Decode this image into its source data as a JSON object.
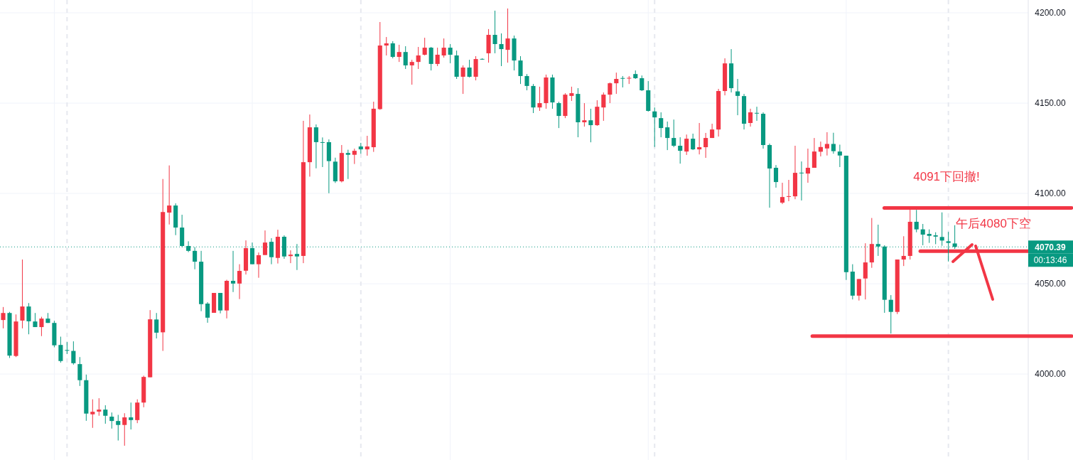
{
  "chart_data": {
    "type": "candlestick",
    "categories": [
      null,
      null,
      null,
      null,
      null,
      null,
      null,
      null,
      null,
      null,
      null,
      null,
      null,
      null,
      null,
      null,
      null,
      null,
      null,
      null,
      null,
      null,
      null,
      null,
      null,
      null,
      null,
      null,
      null,
      null,
      null,
      null,
      null,
      null,
      null,
      null,
      null,
      null,
      null,
      null,
      null,
      null,
      null,
      null,
      null,
      null,
      null,
      null,
      null,
      null,
      null,
      null,
      null,
      null,
      null,
      null,
      null,
      null,
      null,
      null,
      null,
      null,
      null,
      null,
      null,
      null,
      null,
      null,
      null,
      null,
      null,
      null,
      null,
      null,
      null,
      null,
      null,
      null,
      null,
      null,
      null,
      null,
      null,
      null,
      null,
      null,
      null,
      null,
      null,
      null,
      null,
      null,
      null,
      null,
      null,
      null,
      null,
      null,
      null,
      null,
      null,
      null,
      null,
      null,
      null,
      null,
      null,
      null,
      null,
      null,
      null,
      null,
      null,
      null,
      null,
      null,
      null,
      null,
      null,
      null,
      null,
      null,
      null,
      null,
      null,
      null,
      null,
      null,
      null,
      null,
      null,
      null,
      null,
      null,
      null,
      null,
      null,
      null,
      null,
      null,
      null,
      null,
      null,
      null,
      null,
      null,
      null,
      null,
      null,
      null,
      null,
      null,
      null,
      null,
      null,
      null,
      null,
      null,
      null,
      null,
      null
    ],
    "ohlc": [
      [
        4029.9,
        4037.1,
        4025.3,
        4033.8
      ],
      [
        4033.8,
        4034.4,
        4008.9,
        4010.2
      ],
      [
        4010.0,
        4033.0,
        4009.4,
        4029.1
      ],
      [
        4029.6,
        4063.4,
        4025.3,
        4037.4
      ],
      [
        4037.4,
        4039.3,
        4022.0,
        4029.2
      ],
      [
        4029.1,
        4033.8,
        4026.0,
        4026.0
      ],
      [
        4026.0,
        4031.7,
        4021.0,
        4030.7
      ],
      [
        4030.7,
        4033.8,
        4028.3,
        4028.3
      ],
      [
        4028.3,
        4029.5,
        4014.8,
        4015.9
      ],
      [
        4016.1,
        4020.7,
        4006.3,
        4007.2
      ],
      [
        4013.3,
        4017.7,
        4011.1,
        4013.1
      ],
      [
        4012.8,
        4018.1,
        4005.2,
        4006.0
      ],
      [
        4005.5,
        4009.4,
        3993.4,
        3996.6
      ],
      [
        3996.6,
        3999.7,
        3974.1,
        3978.1
      ],
      [
        3977.7,
        3986.0,
        3970.2,
        3979.1
      ],
      [
        3979.2,
        3986.6,
        3976.9,
        3980.3
      ],
      [
        3980.3,
        3982.7,
        3972.5,
        3976.9
      ],
      [
        3976.4,
        3978.7,
        3969.8,
        3974.0
      ],
      [
        3974.0,
        3977.4,
        3963.2,
        3971.8
      ],
      [
        3971.8,
        3978.3,
        3960.3,
        3976.0
      ],
      [
        3976.0,
        3984.2,
        3969.3,
        3974.5
      ],
      [
        3974.5,
        3986.0,
        3972.8,
        3984.2
      ],
      [
        3984.2,
        3999.1,
        3981.6,
        3998.4
      ],
      [
        3998.2,
        4035.4,
        3998.2,
        4030.3
      ],
      [
        4030.2,
        4033.8,
        4019.7,
        4022.9
      ],
      [
        4023.1,
        4108.0,
        4012.8,
        4089.7
      ],
      [
        4089.4,
        4115.5,
        4082.8,
        4093.3
      ],
      [
        4093.3,
        4094.5,
        4076.9,
        4081.1
      ],
      [
        4081.1,
        4088.2,
        4070.3,
        4070.9
      ],
      [
        4070.9,
        4073.5,
        4067.5,
        4068.2
      ],
      [
        4068.2,
        4070.3,
        4058.0,
        4062.2
      ],
      [
        4062.2,
        4068.2,
        4034.8,
        4038.7
      ],
      [
        4039.0,
        4039.8,
        4028.4,
        4031.2
      ],
      [
        4033.9,
        4044.9,
        4033.9,
        4044.9
      ],
      [
        4044.9,
        4044.9,
        4033.6,
        4035.2
      ],
      [
        4035.2,
        4052.2,
        4030.8,
        4051.6
      ],
      [
        4051.6,
        4068.2,
        4045.4,
        4050.1
      ],
      [
        4050.1,
        4060.8,
        4041.5,
        4057.1
      ],
      [
        4057.2,
        4074.0,
        4055.1,
        4069.7
      ],
      [
        4069.7,
        4072.8,
        4060.8,
        4060.8
      ],
      [
        4060.8,
        4067.3,
        4053.3,
        4065.8
      ],
      [
        4065.9,
        4079.5,
        4065.9,
        4072.8
      ],
      [
        4073.2,
        4075.2,
        4060.8,
        4064.7
      ],
      [
        4064.3,
        4079.9,
        4061.2,
        4076.0
      ],
      [
        4076.0,
        4076.8,
        4063.8,
        4065.1
      ],
      [
        4065.3,
        4068.5,
        4061.4,
        4066.1
      ],
      [
        4066.5,
        4072.0,
        4057.6,
        4065.1
      ],
      [
        4065.4,
        4140.2,
        4061.4,
        4117.3
      ],
      [
        4117.3,
        4143.7,
        4109.3,
        4136.6
      ],
      [
        4136.6,
        4138.2,
        4113.9,
        4128.4
      ],
      [
        4128.4,
        4131.0,
        4114.6,
        4128.0
      ],
      [
        4128.4,
        4129.9,
        4100.1,
        4117.9
      ],
      [
        4117.6,
        4119.8,
        4105.8,
        4106.7
      ],
      [
        4106.7,
        4126.8,
        4106.1,
        4122.4
      ],
      [
        4122.4,
        4124.2,
        4108.0,
        4121.4
      ],
      [
        4121.4,
        4124.8,
        4116.3,
        4123.6
      ],
      [
        4126.0,
        4128.0,
        4122.0,
        4124.4
      ],
      [
        4124.4,
        4131.9,
        4120.9,
        4126.0
      ],
      [
        4125.6,
        4150.8,
        4123.0,
        4146.9
      ],
      [
        4146.7,
        4194.9,
        4146.3,
        4181.9
      ],
      [
        4181.9,
        4186.6,
        4176.4,
        4183.1
      ],
      [
        4183.1,
        4184.3,
        4174.8,
        4175.6
      ],
      [
        4175.6,
        4182.3,
        4172.8,
        4178.3
      ],
      [
        4178.3,
        4181.5,
        4168.9,
        4170.9
      ],
      [
        4170.9,
        4174.0,
        4160.2,
        4172.8
      ],
      [
        4172.8,
        4181.1,
        4168.9,
        4176.4
      ],
      [
        4176.8,
        4186.2,
        4176.4,
        4180.7
      ],
      [
        4180.7,
        4181.1,
        4168.1,
        4171.7
      ],
      [
        4171.7,
        4180.7,
        4170.5,
        4176.8
      ],
      [
        4176.4,
        4185.8,
        4175.2,
        4180.7
      ],
      [
        4180.7,
        4182.7,
        4172.1,
        4176.8
      ],
      [
        4176.4,
        4179.1,
        4163.4,
        4164.6
      ],
      [
        4164.6,
        4170.9,
        4155.1,
        4169.7
      ],
      [
        4169.7,
        4174.0,
        4164.2,
        4164.6
      ],
      [
        4164.6,
        4176.0,
        4162.6,
        4174.4
      ],
      [
        4174.5,
        4174.8,
        4174.0,
        4174.2
      ],
      [
        4177.6,
        4191.0,
        4172.4,
        4187.8
      ],
      [
        4187.8,
        4201.2,
        4177.6,
        4182.7
      ],
      [
        4182.7,
        4188.6,
        4170.5,
        4179.9
      ],
      [
        4179.5,
        4202.4,
        4172.4,
        4185.8
      ],
      [
        4185.8,
        4187.4,
        4168.1,
        4173.6
      ],
      [
        4173.6,
        4176.0,
        4160.6,
        4165.0
      ],
      [
        4165.0,
        4166.1,
        4157.1,
        4159.5
      ],
      [
        4159.5,
        4160.6,
        4144.5,
        4147.6
      ],
      [
        4147.6,
        4159.1,
        4145.7,
        4150.0
      ],
      [
        4150.0,
        4165.8,
        4146.9,
        4164.2
      ],
      [
        4164.2,
        4165.8,
        4146.9,
        4150.4
      ],
      [
        4150.0,
        4150.8,
        4136.2,
        4142.9
      ],
      [
        4142.9,
        4155.5,
        4141.7,
        4154.7
      ],
      [
        4154.0,
        4159.1,
        4151.2,
        4155.5
      ],
      [
        4155.1,
        4158.3,
        4131.1,
        4139.4
      ],
      [
        4139.4,
        4150.0,
        4137.0,
        4140.5
      ],
      [
        4140.5,
        4146.9,
        4128.3,
        4137.8
      ],
      [
        4137.8,
        4151.6,
        4137.4,
        4148.0
      ],
      [
        4147.6,
        4155.9,
        4140.2,
        4154.7
      ],
      [
        4154.7,
        4161.4,
        4150.0,
        4161.0
      ],
      [
        4161.0,
        4166.9,
        4155.1,
        4163.4
      ],
      [
        4163.9,
        4165.0,
        4158.7,
        4163.6
      ],
      [
        4163.7,
        4165.0,
        4160.6,
        4164.0
      ],
      [
        4166.1,
        4168.1,
        4163.4,
        4163.8
      ],
      [
        4163.8,
        4165.3,
        4156.7,
        4157.1
      ],
      [
        4157.1,
        4162.2,
        4145.3,
        4145.7
      ],
      [
        4145.4,
        4147.6,
        4125.7,
        4142.1
      ],
      [
        4141.7,
        4144.9,
        4131.1,
        4136.2
      ],
      [
        4136.6,
        4139.8,
        4124.0,
        4130.7
      ],
      [
        4130.7,
        4140.9,
        4125.6,
        4126.4
      ],
      [
        4126.4,
        4131.1,
        4116.5,
        4123.6
      ],
      [
        4123.2,
        4132.6,
        4121.3,
        4130.3
      ],
      [
        4130.3,
        4133.1,
        4124.0,
        4124.4
      ],
      [
        4124.4,
        4139.0,
        4121.6,
        4125.6
      ],
      [
        4125.6,
        4133.5,
        4119.7,
        4130.7
      ],
      [
        4130.7,
        4138.6,
        4130.7,
        4135.4
      ],
      [
        4135.4,
        4157.9,
        4131.5,
        4156.7
      ],
      [
        4156.7,
        4174.8,
        4154.3,
        4172.0
      ],
      [
        4172.0,
        4179.9,
        4155.9,
        4158.3
      ],
      [
        4156.5,
        4163.4,
        4143.3,
        4154.0
      ],
      [
        4153.9,
        4155.1,
        4135.4,
        4138.6
      ],
      [
        4139.0,
        4146.9,
        4137.0,
        4144.9
      ],
      [
        4144.6,
        4148.0,
        4140.2,
        4144.3
      ],
      [
        4144.1,
        4144.9,
        4124.8,
        4126.8
      ],
      [
        4126.8,
        4127.6,
        4092.1,
        4113.8
      ],
      [
        4114.2,
        4115.7,
        4103.2,
        4106.3
      ],
      [
        4094.9,
        4105.9,
        4094.1,
        4098.0
      ],
      [
        4098.2,
        4107.5,
        4095.7,
        4098.5
      ],
      [
        4098.4,
        4126.4,
        4096.8,
        4111.4
      ],
      [
        4111.5,
        4117.7,
        4096.1,
        4111.2
      ],
      [
        4111.0,
        4124.8,
        4105.9,
        4114.2
      ],
      [
        4114.2,
        4130.7,
        4114.2,
        4123.2
      ],
      [
        4123.1,
        4128.7,
        4120.5,
        4125.7
      ],
      [
        4124.9,
        4133.9,
        4121.0,
        4127.4
      ],
      [
        4127.4,
        4133.6,
        4122.0,
        4123.4
      ],
      [
        4123.2,
        4127.0,
        4114.6,
        4121.0
      ],
      [
        4120.9,
        4120.9,
        4052.1,
        4056.4
      ],
      [
        4056.7,
        4060.8,
        4041.3,
        4043.4
      ],
      [
        4043.4,
        4052.6,
        4040.7,
        4052.6
      ],
      [
        4052.9,
        4072.4,
        4041.3,
        4061.8
      ],
      [
        4061.8,
        4086.4,
        4058.8,
        4072.0
      ],
      [
        4072.0,
        4082.7,
        4065.4,
        4070.6
      ],
      [
        4070.6,
        4071.3,
        4033.9,
        4041.1
      ],
      [
        4041.1,
        4043.7,
        4022.4,
        4034.4
      ],
      [
        4034.4,
        4063.4,
        4033.2,
        4063.4
      ],
      [
        4063.4,
        4076.3,
        4059.8,
        4065.4
      ],
      [
        4065.4,
        4091.3,
        4063.4,
        4084.3
      ],
      [
        4084.3,
        4090.9,
        4078.5,
        4080.1
      ],
      [
        4080.1,
        4083.1,
        4071.3,
        4077.2
      ],
      [
        4077.6,
        4080.1,
        4072.6,
        4076.5
      ],
      [
        4076.8,
        4078.5,
        4071.9,
        4076.1
      ],
      [
        4075.9,
        4089.5,
        4071.0,
        4073.9
      ],
      [
        4073.5,
        4078.7,
        4062.3,
        4072.6
      ],
      [
        4072.3,
        4082.4,
        4069.3,
        4070.39
      ],
      null,
      null,
      null,
      null,
      null,
      null,
      null,
      null,
      null,
      null,
      null
    ],
    "colors": [
      "#f23645",
      "#089981",
      "#f23645",
      "#f23645",
      "#089981",
      "#089981",
      "#f23645",
      "#089981",
      "#089981",
      "#089981",
      "#089981",
      "#089981",
      "#089981",
      "#089981",
      "#f23645",
      "#f23645",
      "#089981",
      "#089981",
      "#089981",
      "#f23645",
      "#089981",
      "#f23645",
      "#f23645",
      "#f23645",
      "#089981",
      "#f23645",
      "#f23645",
      "#089981",
      "#089981",
      "#089981",
      "#089981",
      "#089981",
      "#089981",
      "#f23645",
      "#089981",
      "#f23645",
      "#089981",
      "#f23645",
      "#f23645",
      "#089981",
      "#f23645",
      "#f23645",
      "#089981",
      "#f23645",
      "#089981",
      "#f23645",
      "#089981",
      "#f23645",
      "#f23645",
      "#089981",
      "#089981",
      "#089981",
      "#089981",
      "#f23645",
      "#089981",
      "#f23645",
      "#089981",
      "#f23645",
      "#f23645",
      "#f23645",
      "#f23645",
      "#089981",
      "#f23645",
      "#089981",
      "#f23645",
      "#f23645",
      "#f23645",
      "#089981",
      "#f23645",
      "#f23645",
      "#089981",
      "#089981",
      "#f23645",
      "#089981",
      "#f23645",
      "#089981",
      "#f23645",
      "#089981",
      "#089981",
      "#f23645",
      "#089981",
      "#089981",
      "#089981",
      "#089981",
      "#f23645",
      "#f23645",
      "#089981",
      "#089981",
      "#f23645",
      "#f23645",
      "#089981",
      "#f23645",
      "#089981",
      "#f23645",
      "#f23645",
      "#f23645",
      "#f23645",
      "#089981",
      "#f23645",
      "#089981",
      "#089981",
      "#089981",
      "#089981",
      "#089981",
      "#089981",
      "#089981",
      "#089981",
      "#f23645",
      "#089981",
      "#f23645",
      "#f23645",
      "#f23645",
      "#f23645",
      "#f23645",
      "#089981",
      "#089981",
      "#089981",
      "#f23645",
      "#089981",
      "#089981",
      "#089981",
      "#089981",
      "#f23645",
      "#f23645",
      "#f23645",
      "#089981",
      "#f23645",
      "#f23645",
      "#f23645",
      "#f23645",
      "#089981",
      "#089981",
      "#089981",
      "#089981",
      "#f23645",
      "#f23645",
      "#f23645",
      "#089981",
      "#089981",
      "#089981",
      "#f23645",
      "#f23645",
      "#f23645",
      "#089981",
      "#089981",
      "#089981",
      "#089981",
      "#089981",
      "#089981",
      "#089981",
      null,
      null,
      null,
      null,
      null,
      null,
      null,
      null,
      null,
      null,
      null
    ],
    "ylim": [
      3952.4,
      4207.1
    ],
    "yticks": [
      {
        "value": 4000,
        "label": "4000.00"
      },
      {
        "value": 4050,
        "label": "4050.00"
      },
      {
        "value": 4100,
        "label": "4100.00"
      },
      {
        "value": 4150,
        "label": "4150.00"
      },
      {
        "value": 4200,
        "label": "4200.00"
      }
    ],
    "grid": true,
    "ref_lines": [
      {
        "axis": "y",
        "value": 4070.39,
        "label": "4070.39",
        "color": "#089981",
        "line_style": "dotted"
      },
      {
        "axis": "y",
        "value": 4092,
        "label": null,
        "color": "#f23645",
        "line_style": "solid"
      },
      {
        "axis": "y",
        "value": 4068,
        "label": null,
        "color": "#f23645",
        "line_style": "solid"
      },
      {
        "axis": "y",
        "value": 4021,
        "label": null,
        "color": "#f23645",
        "line_style": "solid"
      }
    ],
    "annotations": [
      "4091下回撤!",
      "午后4080下空",
      "00:13:46"
    ]
  }
}
